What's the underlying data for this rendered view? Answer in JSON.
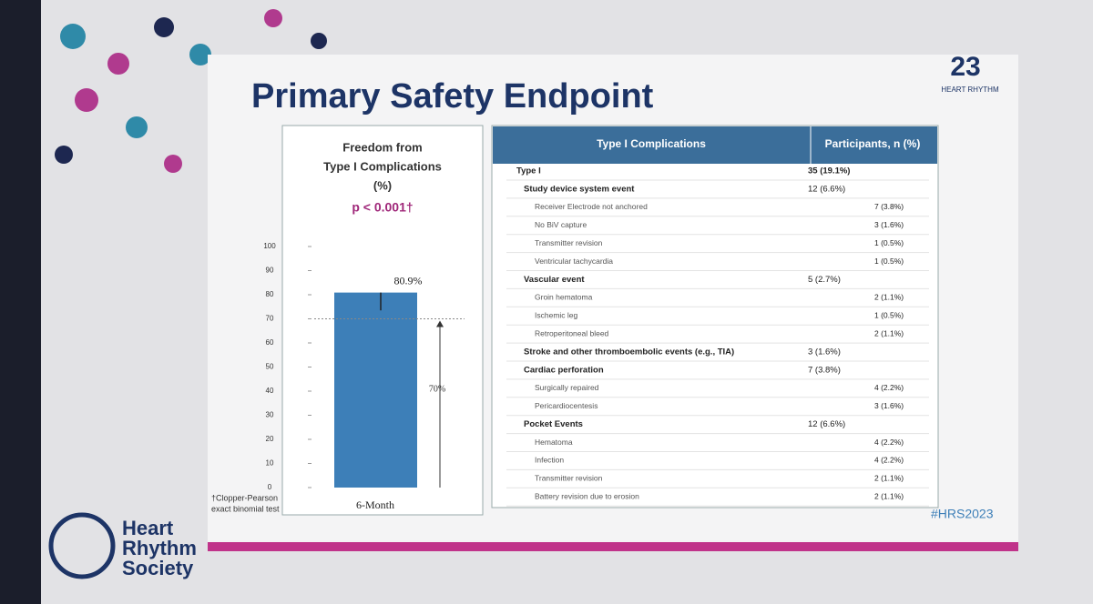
{
  "slide_title": "Primary Safety Endpoint",
  "logo": {
    "mark": "23",
    "text": "HEART RHYTHM"
  },
  "society": [
    "Heart",
    "Rhythm",
    "Society"
  ],
  "hashtag": "#HRS2023",
  "footnote": [
    "†Clopper-Pearson",
    "exact binomial test"
  ],
  "chart_data": {
    "type": "bar",
    "title": [
      "Freedom from",
      "Type I Complications",
      "(%)"
    ],
    "subtitle": "p < 0.001†",
    "categories": [
      "6-Month"
    ],
    "values": [
      80.9
    ],
    "value_labels": [
      "80.9%"
    ],
    "error_lower": [
      7.4
    ],
    "color": "#3d7fb8",
    "threshold": {
      "value": 70,
      "label": "70%"
    },
    "ylim": [
      0,
      100
    ],
    "yticks": [
      0,
      10,
      20,
      30,
      40,
      50,
      60,
      70,
      80,
      90,
      100
    ]
  },
  "table": {
    "header": [
      "Type I Complications",
      "Participants, n (%)"
    ],
    "rows": [
      {
        "label": "Type I",
        "value": "35 (19.1%)",
        "items": [
          {
            "label": "Study device system event",
            "value": "12 (6.6%)",
            "items": [
              {
                "label": "Receiver Electrode not anchored",
                "value": "7 (3.8%)"
              },
              {
                "label": "No BiV capture",
                "value": "3 (1.6%)"
              },
              {
                "label": "Transmitter revision",
                "value": "1 (0.5%)"
              },
              {
                "label": "Ventricular tachycardia",
                "value": "1 (0.5%)"
              }
            ]
          },
          {
            "label": "Vascular event",
            "value": "5 (2.7%)",
            "items": [
              {
                "label": "Groin hematoma",
                "value": "2 (1.1%)"
              },
              {
                "label": "Ischemic leg",
                "value": "1 (0.5%)"
              },
              {
                "label": "Retroperitoneal bleed",
                "value": "2 (1.1%)"
              }
            ]
          },
          {
            "label": "Stroke and other thromboembolic events (e.g., TIA)",
            "value": "3 (1.6%)"
          },
          {
            "label": "Cardiac perforation",
            "value": "7 (3.8%)",
            "items": [
              {
                "label": "Surgically repaired",
                "value": "4 (2.2%)"
              },
              {
                "label": "Pericardiocentesis",
                "value": "3 (1.6%)"
              }
            ]
          },
          {
            "label": "Pocket Events",
            "value": "12 (6.6%)",
            "items": [
              {
                "label": "Hematoma",
                "value": "4 (2.2%)"
              },
              {
                "label": "Infection",
                "value": "4 (2.2%)"
              },
              {
                "label": "Transmitter revision",
                "value": "2 (1.1%)"
              },
              {
                "label": "Battery revision due to erosion",
                "value": "2 (1.1%)"
              }
            ]
          }
        ]
      }
    ]
  }
}
